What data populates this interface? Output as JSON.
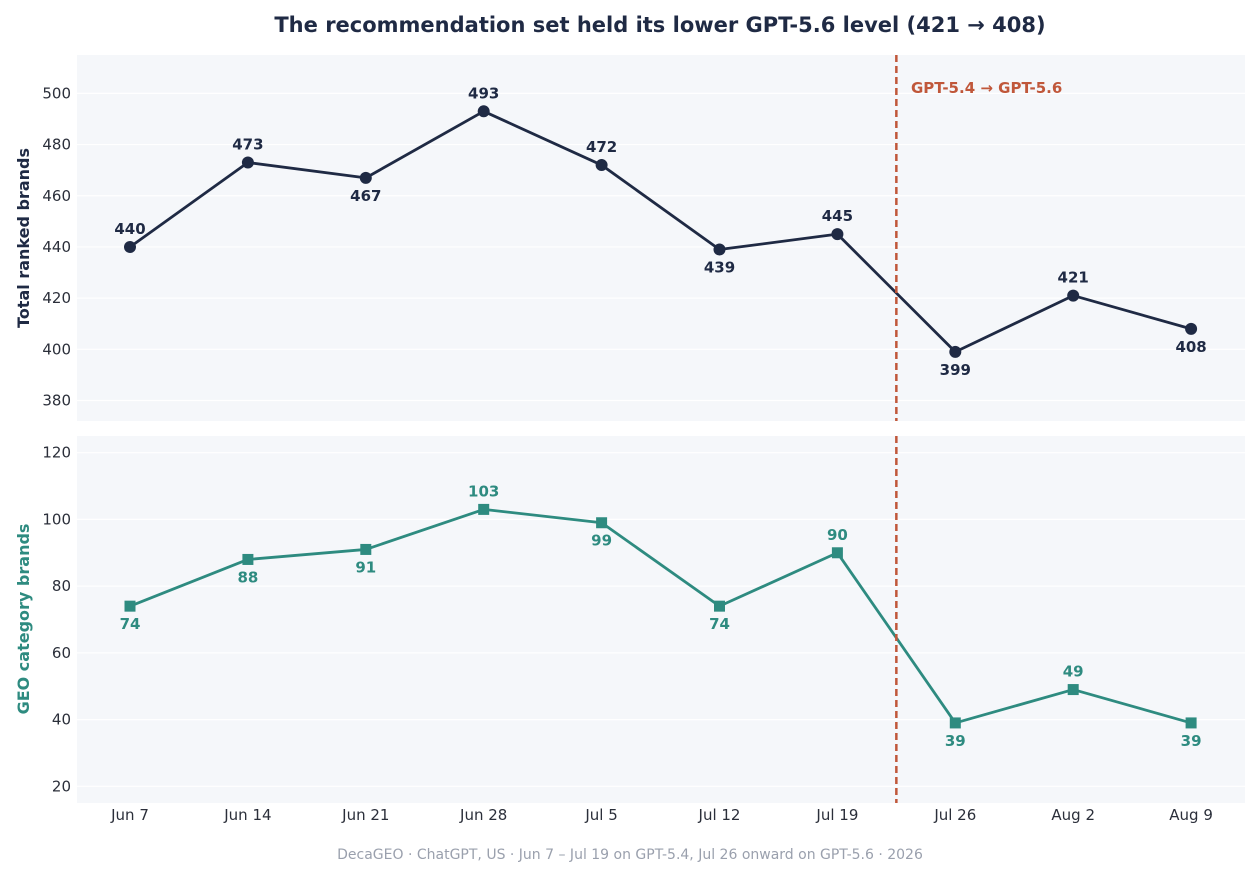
{
  "title": "The recommendation set held its lower GPT-5.6 level (421 → 408)",
  "footer": "DecaGEO · ChatGPT, US · Jun 7 – Jul 19 on GPT-5.4, Jul 26 onward on GPT-5.6 · 2026",
  "colors": {
    "navy": "#1f2a44",
    "teal": "#2e8b80",
    "accent": "#c0573a",
    "panel_bg": "#f5f7fa",
    "grid": "#ffffff"
  },
  "chart_data": [
    {
      "type": "line",
      "ylabel": "Total ranked brands",
      "ylim": [
        372,
        515
      ],
      "yticks": [
        380,
        400,
        420,
        440,
        460,
        480,
        500
      ],
      "grid": true,
      "categories": [
        "Jun 7",
        "Jun 14",
        "Jun 21",
        "Jun 28",
        "Jul 5",
        "Jul 12",
        "Jul 19",
        "Jul 26",
        "Aug 2",
        "Aug 9"
      ],
      "series": [
        {
          "marker": "circle",
          "values": [
            440,
            473,
            467,
            493,
            472,
            439,
            445,
            399,
            421,
            408
          ]
        }
      ],
      "label_positions": [
        "above",
        "above",
        "below",
        "above",
        "above",
        "below",
        "above",
        "below",
        "above",
        "below"
      ]
    },
    {
      "type": "line",
      "ylabel": "GEO category brands",
      "ylim": [
        15,
        125
      ],
      "yticks": [
        20,
        40,
        60,
        80,
        100,
        120
      ],
      "grid": true,
      "categories": [
        "Jun 7",
        "Jun 14",
        "Jun 21",
        "Jun 28",
        "Jul 5",
        "Jul 12",
        "Jul 19",
        "Jul 26",
        "Aug 2",
        "Aug 9"
      ],
      "series": [
        {
          "marker": "square",
          "values": [
            74,
            88,
            91,
            103,
            99,
            74,
            90,
            39,
            49,
            39
          ]
        }
      ],
      "label_positions": [
        "below",
        "below",
        "below",
        "above",
        "below",
        "below",
        "above",
        "below",
        "above",
        "below"
      ]
    }
  ],
  "annotation": {
    "text": "GPT-5.4 → GPT-5.6",
    "between": [
      "Jul 19",
      "Jul 26"
    ]
  }
}
